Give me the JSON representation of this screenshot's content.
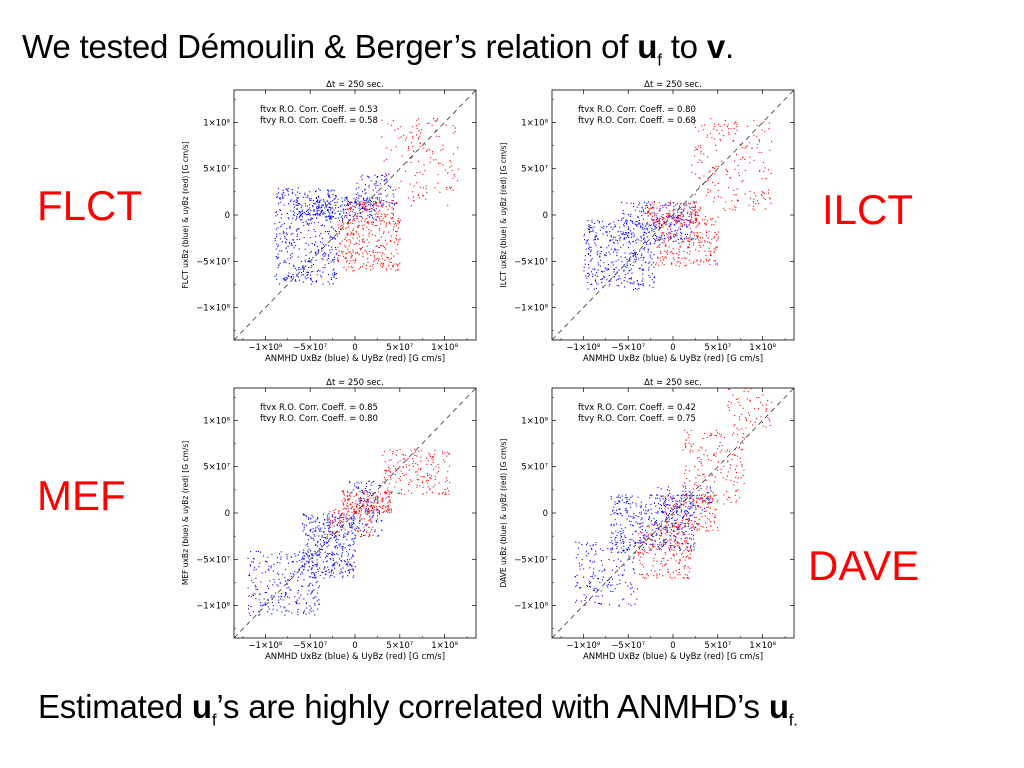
{
  "slide": {
    "title": {
      "pre": "We tested Démoulin & Berger’s relation of ",
      "u": "u",
      "usub": "f",
      "mid": " to ",
      "v": "v",
      "end": "."
    },
    "bottom": {
      "pre": "Estimated ",
      "u": "u",
      "usub": "f",
      "mid": "’s are highly correlated with ANMHD’s ",
      "u2": "u",
      "usub2": "f."
    },
    "labels": {
      "flct": "FLCT",
      "ilct": "ILCT",
      "mef": "MEF",
      "dave": "DAVE"
    },
    "colors": {
      "method_label": "#ff0000",
      "blue_series": "#0000ff",
      "red_series": "#ff0000"
    }
  },
  "chart_data": [
    {
      "type": "scatter",
      "method": "FLCT",
      "title": "Δt =  250 sec.",
      "xlabel": "ANMHD UxBz (blue) & UyBz (red) [G cm/s]",
      "ylabel": "FLCT uxBz (blue) & uyBz (red) [G cm/s]",
      "xlim": [
        -135000000.0,
        135000000.0
      ],
      "ylim": [
        -135000000.0,
        135000000.0
      ],
      "xticks": [
        "−1×10⁸",
        "−5×10⁷",
        "0",
        "5×10⁷",
        "1×10⁸"
      ],
      "yticks": [
        "1×10⁸",
        "5×10⁷",
        "0",
        "−5×10⁷",
        "−1×10⁸"
      ],
      "annotations": [
        "ftvx R.O. Corr. Coeff. = 0.53",
        "ftvy R.O. Corr. Coeff. = 0.58"
      ],
      "reference_line": "y = x (dashed)",
      "series": [
        {
          "name": "blue (x)",
          "color": "#0000ff",
          "clusters": [
            {
              "x": [
                -90000000.0,
                -20000000.0
              ],
              "y": [
                -75000000.0,
                30000000.0
              ],
              "n": 420
            },
            {
              "x": [
                -70000000.0,
                25000000.0
              ],
              "y": [
                -5000000.0,
                20000000.0
              ],
              "n": 260
            },
            {
              "x": [
                0.0,
                45000000.0
              ],
              "y": [
                10000000.0,
                45000000.0
              ],
              "n": 90
            }
          ]
        },
        {
          "name": "red (y)",
          "color": "#ff0000",
          "clusters": [
            {
              "x": [
                -20000000.0,
                50000000.0
              ],
              "y": [
                -60000000.0,
                -5000000.0
              ],
              "n": 260
            },
            {
              "x": [
                25000000.0,
                115000000.0
              ],
              "y": [
                10000000.0,
                105000000.0
              ],
              "n": 150
            },
            {
              "x": [
                -10000000.0,
                50000000.0
              ],
              "y": [
                -10000000.0,
                15000000.0
              ],
              "n": 120
            }
          ]
        }
      ]
    },
    {
      "type": "scatter",
      "method": "ILCT",
      "title": "Δt =  250 sec.",
      "xlabel": "ANMHD UxBz (blue) & UyBz (red) [G cm/s]",
      "ylabel": "ILCT uxBz (blue) & uyBz (red) [G cm/s]",
      "xlim": [
        -135000000.0,
        135000000.0
      ],
      "ylim": [
        -135000000.0,
        135000000.0
      ],
      "xticks": [
        "−1×10⁸",
        "−5×10⁷",
        "0",
        "5×10⁷",
        "1×10⁸"
      ],
      "yticks": [
        "1×10⁸",
        "5×10⁷",
        "0",
        "−5×10⁷",
        "−1×10⁸"
      ],
      "annotations": [
        "ftvx R.O. Corr. Coeff. = 0.80",
        "ftvy R.O. Corr. Coeff. = 0.68"
      ],
      "reference_line": "y = x (dashed)",
      "series": [
        {
          "name": "blue (x)",
          "color": "#0000ff",
          "clusters": [
            {
              "x": [
                -100000000.0,
                -20000000.0
              ],
              "y": [
                -80000000.0,
                -5000000.0
              ],
              "n": 380
            },
            {
              "x": [
                -60000000.0,
                25000000.0
              ],
              "y": [
                -30000000.0,
                15000000.0
              ],
              "n": 260
            }
          ]
        },
        {
          "name": "red (y)",
          "color": "#ff0000",
          "clusters": [
            {
              "x": [
                -20000000.0,
                50000000.0
              ],
              "y": [
                -55000000.0,
                0.0
              ],
              "n": 240
            },
            {
              "x": [
                20000000.0,
                110000000.0
              ],
              "y": [
                5000000.0,
                105000000.0
              ],
              "n": 200
            },
            {
              "x": [
                -30000000.0,
                30000000.0
              ],
              "y": [
                -10000000.0,
                15000000.0
              ],
              "n": 140
            }
          ]
        }
      ]
    },
    {
      "type": "scatter",
      "method": "MEF",
      "title": "Δt =  250 sec.",
      "xlabel": "ANMHD UxBz (blue) & UyBz (red) [G cm/s]",
      "ylabel": "MEF uxBz (blue) & uyBz (red) [G cm/s]",
      "xlim": [
        -135000000.0,
        135000000.0
      ],
      "ylim": [
        -135000000.0,
        135000000.0
      ],
      "xticks": [
        "−1×10⁸",
        "−5×10⁷",
        "0",
        "5×10⁷",
        "1×10⁸"
      ],
      "yticks": [
        "1×10⁸",
        "5×10⁷",
        "0",
        "−5×10⁷",
        "−1×10⁸"
      ],
      "annotations": [
        "ftvx R.O. Corr. Coeff. = 0.85",
        "ftvy R.O. Corr. Coeff. = 0.80"
      ],
      "reference_line": "y = x (dashed)",
      "series": [
        {
          "name": "blue (x)",
          "color": "#0000ff",
          "clusters": [
            {
              "x": [
                -120000000.0,
                -40000000.0
              ],
              "y": [
                -110000000.0,
                -40000000.0
              ],
              "n": 260
            },
            {
              "x": [
                -60000000.0,
                0.0
              ],
              "y": [
                -70000000.0,
                0.0
              ],
              "n": 380
            },
            {
              "x": [
                -10000000.0,
                30000000.0
              ],
              "y": [
                -25000000.0,
                35000000.0
              ],
              "n": 120
            }
          ]
        },
        {
          "name": "red (y)",
          "color": "#ff0000",
          "clusters": [
            {
              "x": [
                -15000000.0,
                40000000.0
              ],
              "y": [
                0.0,
                25000000.0
              ],
              "n": 200
            },
            {
              "x": [
                30000000.0,
                105000000.0
              ],
              "y": [
                20000000.0,
                70000000.0
              ],
              "n": 180
            },
            {
              "x": [
                -30000000.0,
                20000000.0
              ],
              "y": [
                -25000000.0,
                5000000.0
              ],
              "n": 100
            }
          ]
        }
      ]
    },
    {
      "type": "scatter",
      "method": "DAVE",
      "title": "Δt =  250 sec.",
      "xlabel": "ANMHD UxBz (blue) & UyBz (red) [G cm/s]",
      "ylabel": "DAVE uxBz (blue) & uyBz (red) [G cm/s]",
      "xlim": [
        -135000000.0,
        135000000.0
      ],
      "ylim": [
        -135000000.0,
        135000000.0
      ],
      "xticks": [
        "−1×10⁸",
        "−5×10⁷",
        "0",
        "5×10⁷",
        "1×10⁸"
      ],
      "yticks": [
        "1×10⁸",
        "5×10⁷",
        "0",
        "−5×10⁷",
        "−1×10⁸"
      ],
      "annotations": [
        "ftvx R.O. Corr. Coeff. = 0.42",
        "ftvy R.O. Corr. Coeff. = 0.75"
      ],
      "reference_line": "y = x (dashed)",
      "series": [
        {
          "name": "blue (x)",
          "color": "#0000ff",
          "clusters": [
            {
              "x": [
                -110000000.0,
                -40000000.0
              ],
              "y": [
                -100000000.0,
                -30000000.0
              ],
              "n": 160
            },
            {
              "x": [
                -70000000.0,
                25000000.0
              ],
              "y": [
                -40000000.0,
                20000000.0
              ],
              "n": 420
            },
            {
              "x": [
                -20000000.0,
                45000000.0
              ],
              "y": [
                0.0,
                30000000.0
              ],
              "n": 100
            }
          ]
        },
        {
          "name": "red (y)",
          "color": "#ff0000",
          "clusters": [
            {
              "x": [
                -40000000.0,
                20000000.0
              ],
              "y": [
                -70000000.0,
                -10000000.0
              ],
              "n": 220
            },
            {
              "x": [
                10000000.0,
                80000000.0
              ],
              "y": [
                10000000.0,
                90000000.0
              ],
              "n": 180
            },
            {
              "x": [
                60000000.0,
                110000000.0
              ],
              "y": [
                90000000.0,
                135000000.0
              ],
              "n": 60
            },
            {
              "x": [
                -10000000.0,
                50000000.0
              ],
              "y": [
                -20000000.0,
                20000000.0
              ],
              "n": 140
            }
          ]
        }
      ]
    }
  ]
}
